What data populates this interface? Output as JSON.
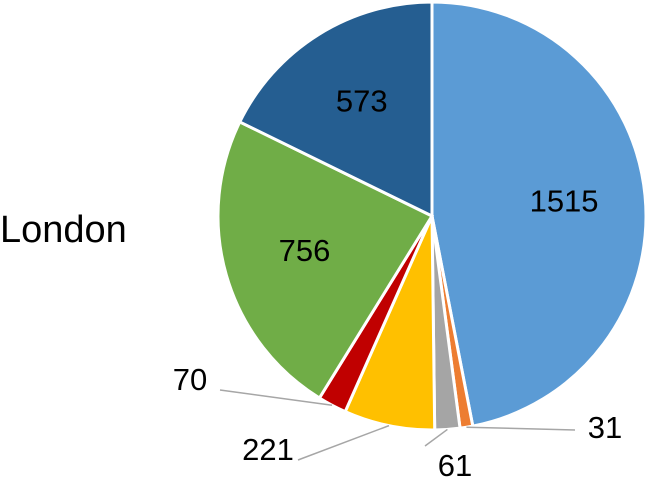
{
  "chart_data": {
    "type": "pie",
    "title": "London",
    "categories": [
      null,
      null,
      null,
      null,
      null,
      null,
      null
    ],
    "values": [
      1515,
      31,
      61,
      221,
      70,
      756,
      573
    ],
    "colors": [
      "#5b9bd5",
      "#ed7d31",
      "#a5a5a5",
      "#ffc000",
      "#c00000",
      "#70ad47",
      "#255e91"
    ]
  }
}
